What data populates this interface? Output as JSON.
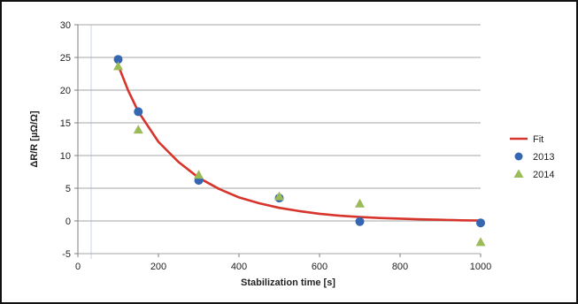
{
  "chart_data": {
    "type": "scatter",
    "xlabel": "Stabilization time [s]",
    "ylabel": "ΔR/R [µΩ/Ω]",
    "xlim": [
      0,
      1000
    ],
    "ylim": [
      -5,
      30
    ],
    "x_ticks": [
      0,
      200,
      400,
      600,
      800,
      1000
    ],
    "y_ticks": [
      -5,
      0,
      5,
      10,
      15,
      20,
      25,
      30
    ],
    "grid": "horizontal",
    "legend_position": "right",
    "series": [
      {
        "name": "Fit",
        "kind": "line",
        "color": "#d7342c",
        "x": [
          100,
          125,
          150,
          200,
          250,
          300,
          350,
          400,
          450,
          500,
          550,
          600,
          650,
          700,
          750,
          800,
          850,
          900,
          950,
          1000
        ],
        "y": [
          23.8,
          19.9,
          16.7,
          12.1,
          9.0,
          6.6,
          4.9,
          3.6,
          2.7,
          2.0,
          1.5,
          1.1,
          0.8,
          0.6,
          0.45,
          0.35,
          0.25,
          0.18,
          0.1,
          0.05
        ]
      },
      {
        "name": "2013",
        "kind": "marker",
        "marker": "circle",
        "color": "#3466b2",
        "x": [
          100,
          150,
          300,
          500,
          700,
          1000
        ],
        "y": [
          24.7,
          16.7,
          6.2,
          3.5,
          -0.1,
          -0.3
        ]
      },
      {
        "name": "2014",
        "kind": "marker",
        "marker": "triangle",
        "color": "#9bbb59",
        "x": [
          100,
          150,
          300,
          500,
          700,
          1000
        ],
        "y": [
          23.6,
          13.9,
          7.0,
          3.7,
          2.6,
          -3.3
        ]
      }
    ]
  }
}
